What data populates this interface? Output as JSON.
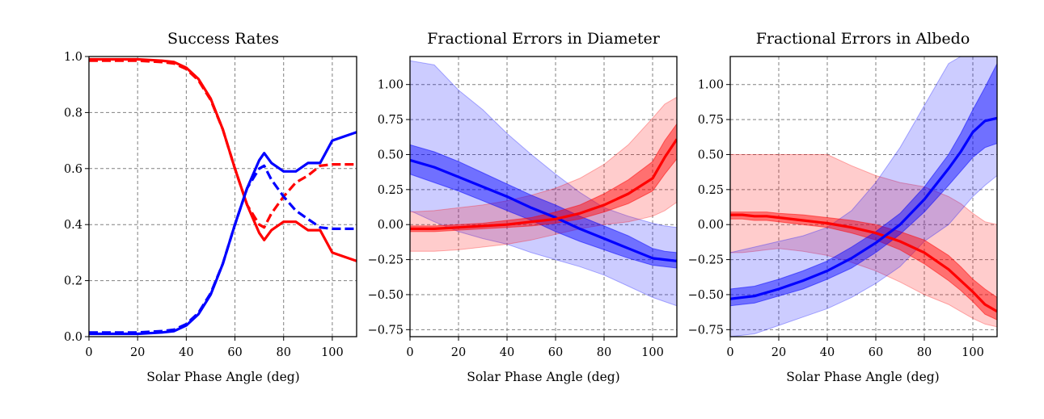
{
  "colors": {
    "red": "#ff0000",
    "blue": "#0000ff",
    "grid": "#808080"
  },
  "chart_data": [
    {
      "type": "line",
      "title": "Success Rates",
      "xlabel": "Solar Phase Angle (deg)",
      "ylabel": "",
      "xlim": [
        0,
        110
      ],
      "ylim": [
        0,
        1.0
      ],
      "xticks": [
        "0",
        "20",
        "40",
        "60",
        "80",
        "100"
      ],
      "yticks": [
        "0.0",
        "0.2",
        "0.4",
        "0.6",
        "0.8",
        "1.0"
      ],
      "grid": true,
      "series": [
        {
          "color": "red",
          "style": "solid",
          "x": [
            0,
            10,
            20,
            30,
            35,
            40,
            45,
            50,
            55,
            60,
            65,
            70,
            72,
            75,
            80,
            85,
            90,
            95,
            100,
            105,
            110
          ],
          "y": [
            0.99,
            0.99,
            0.99,
            0.985,
            0.98,
            0.96,
            0.92,
            0.85,
            0.74,
            0.6,
            0.47,
            0.37,
            0.345,
            0.38,
            0.41,
            0.41,
            0.38,
            0.38,
            0.3,
            0.285,
            0.27
          ]
        },
        {
          "color": "red",
          "style": "dashed",
          "x": [
            0,
            10,
            20,
            30,
            35,
            40,
            45,
            50,
            55,
            60,
            65,
            70,
            72,
            75,
            80,
            85,
            90,
            95,
            100,
            105,
            110
          ],
          "y": [
            0.985,
            0.985,
            0.985,
            0.98,
            0.975,
            0.955,
            0.915,
            0.845,
            0.74,
            0.6,
            0.47,
            0.4,
            0.39,
            0.44,
            0.5,
            0.55,
            0.575,
            0.61,
            0.615,
            0.615,
            0.615
          ]
        },
        {
          "color": "blue",
          "style": "solid",
          "x": [
            0,
            10,
            20,
            30,
            35,
            40,
            45,
            50,
            55,
            60,
            65,
            70,
            72,
            75,
            80,
            85,
            90,
            95,
            100,
            105,
            110
          ],
          "y": [
            0.01,
            0.01,
            0.01,
            0.015,
            0.02,
            0.04,
            0.08,
            0.15,
            0.26,
            0.4,
            0.53,
            0.63,
            0.655,
            0.62,
            0.59,
            0.59,
            0.62,
            0.62,
            0.7,
            0.715,
            0.73
          ]
        },
        {
          "color": "blue",
          "style": "dashed",
          "x": [
            0,
            10,
            20,
            30,
            35,
            40,
            45,
            50,
            55,
            60,
            65,
            70,
            72,
            75,
            80,
            85,
            90,
            95,
            100,
            105,
            110
          ],
          "y": [
            0.015,
            0.015,
            0.015,
            0.02,
            0.025,
            0.045,
            0.085,
            0.155,
            0.26,
            0.4,
            0.53,
            0.6,
            0.61,
            0.56,
            0.5,
            0.45,
            0.42,
            0.39,
            0.385,
            0.385,
            0.385
          ]
        }
      ]
    },
    {
      "type": "area",
      "title": "Fractional Errors in Diameter",
      "xlabel": "Solar Phase Angle (deg)",
      "ylabel": "",
      "xlim": [
        0,
        110
      ],
      "ylim": [
        -0.8,
        1.2
      ],
      "xticks": [
        "0",
        "20",
        "40",
        "60",
        "80",
        "100"
      ],
      "yticks": [
        "1.00",
        "0.75",
        "0.50",
        "0.25",
        "0.00",
        "−0.25",
        "−0.50",
        "−0.75"
      ],
      "grid": true,
      "series": [
        {
          "color": "blue",
          "x": [
            0,
            10,
            20,
            30,
            40,
            50,
            60,
            70,
            80,
            90,
            100,
            105,
            110
          ],
          "median": [
            0.46,
            0.41,
            0.34,
            0.27,
            0.2,
            0.12,
            0.05,
            -0.03,
            -0.1,
            -0.17,
            -0.24,
            -0.25,
            -0.26
          ],
          "inner_lo": [
            0.36,
            0.3,
            0.24,
            0.17,
            0.1,
            0.03,
            -0.05,
            -0.12,
            -0.18,
            -0.24,
            -0.29,
            -0.3,
            -0.31
          ],
          "inner_hi": [
            0.57,
            0.52,
            0.45,
            0.37,
            0.29,
            0.21,
            0.14,
            0.06,
            -0.01,
            -0.08,
            -0.17,
            -0.19,
            -0.2
          ],
          "outer_lo": [
            0.1,
            0.02,
            -0.05,
            -0.1,
            -0.14,
            -0.2,
            -0.25,
            -0.3,
            -0.36,
            -0.44,
            -0.52,
            -0.55,
            -0.58
          ],
          "outer_hi": [
            1.17,
            1.14,
            0.96,
            0.82,
            0.65,
            0.5,
            0.36,
            0.23,
            0.12,
            0.06,
            0.01,
            -0.01,
            -0.02
          ]
        },
        {
          "color": "red",
          "x": [
            0,
            10,
            20,
            30,
            40,
            50,
            60,
            70,
            80,
            90,
            100,
            105,
            110
          ],
          "median": [
            -0.03,
            -0.03,
            -0.02,
            -0.01,
            0.0,
            0.02,
            0.04,
            0.08,
            0.14,
            0.22,
            0.33,
            0.48,
            0.61
          ],
          "inner_lo": [
            -0.05,
            -0.05,
            -0.04,
            -0.03,
            -0.02,
            -0.01,
            0.01,
            0.04,
            0.09,
            0.15,
            0.24,
            0.36,
            0.47
          ],
          "inner_hi": [
            -0.01,
            -0.01,
            0.0,
            0.01,
            0.03,
            0.05,
            0.09,
            0.14,
            0.22,
            0.32,
            0.45,
            0.6,
            0.72
          ],
          "outer_lo": [
            -0.19,
            -0.19,
            -0.18,
            -0.16,
            -0.14,
            -0.11,
            -0.07,
            -0.03,
            0.0,
            0.02,
            0.06,
            0.1,
            0.16
          ],
          "outer_hi": [
            0.09,
            0.1,
            0.12,
            0.14,
            0.17,
            0.21,
            0.26,
            0.33,
            0.43,
            0.57,
            0.76,
            0.86,
            0.91
          ]
        }
      ]
    },
    {
      "type": "area",
      "title": "Fractional Errors in Albedo",
      "xlabel": "Solar Phase Angle (deg)",
      "ylabel": "",
      "xlim": [
        0,
        110
      ],
      "ylim": [
        -0.8,
        1.2
      ],
      "xticks": [
        "0",
        "20",
        "40",
        "60",
        "80",
        "100"
      ],
      "yticks": [
        "1.00",
        "0.75",
        "0.50",
        "0.25",
        "0.00",
        "−0.25",
        "−0.50",
        "−0.75"
      ],
      "grid": true,
      "series": [
        {
          "color": "red",
          "x": [
            0,
            5,
            10,
            15,
            20,
            30,
            40,
            50,
            60,
            70,
            80,
            90,
            95,
            100,
            105,
            110
          ],
          "median": [
            0.07,
            0.07,
            0.06,
            0.06,
            0.05,
            0.03,
            0.01,
            -0.02,
            -0.06,
            -0.12,
            -0.2,
            -0.32,
            -0.4,
            -0.48,
            -0.57,
            -0.62
          ],
          "inner_lo": [
            0.04,
            0.04,
            0.03,
            0.03,
            0.02,
            0.0,
            -0.02,
            -0.06,
            -0.11,
            -0.18,
            -0.28,
            -0.4,
            -0.47,
            -0.55,
            -0.64,
            -0.68
          ],
          "inner_hi": [
            0.09,
            0.09,
            0.09,
            0.09,
            0.08,
            0.07,
            0.05,
            0.03,
            0.0,
            -0.05,
            -0.11,
            -0.22,
            -0.3,
            -0.39,
            -0.46,
            -0.52
          ],
          "outer_lo": [
            -0.2,
            -0.2,
            -0.19,
            -0.18,
            -0.17,
            -0.19,
            -0.22,
            -0.27,
            -0.33,
            -0.41,
            -0.5,
            -0.57,
            -0.62,
            -0.67,
            -0.71,
            -0.73
          ],
          "outer_hi": [
            0.5,
            0.5,
            0.5,
            0.5,
            0.5,
            0.5,
            0.5,
            0.42,
            0.35,
            0.3,
            0.27,
            0.2,
            0.15,
            0.08,
            0.02,
            0.0
          ]
        },
        {
          "color": "blue",
          "x": [
            0,
            10,
            20,
            30,
            40,
            50,
            60,
            70,
            80,
            90,
            95,
            100,
            105,
            110
          ],
          "median": [
            -0.53,
            -0.51,
            -0.46,
            -0.4,
            -0.33,
            -0.24,
            -0.13,
            0.0,
            0.18,
            0.4,
            0.52,
            0.66,
            0.74,
            0.76
          ],
          "inner_lo": [
            -0.58,
            -0.56,
            -0.51,
            -0.46,
            -0.39,
            -0.31,
            -0.2,
            -0.07,
            0.09,
            0.28,
            0.38,
            0.48,
            0.55,
            0.58
          ],
          "inner_hi": [
            -0.46,
            -0.44,
            -0.39,
            -0.33,
            -0.26,
            -0.16,
            -0.05,
            0.08,
            0.27,
            0.5,
            0.65,
            0.82,
            0.98,
            1.15
          ],
          "outer_lo": [
            -0.8,
            -0.78,
            -0.72,
            -0.66,
            -0.6,
            -0.52,
            -0.42,
            -0.3,
            -0.12,
            0.0,
            0.1,
            0.2,
            0.28,
            0.35
          ],
          "outer_hi": [
            -0.2,
            -0.16,
            -0.12,
            -0.08,
            -0.02,
            0.1,
            0.3,
            0.55,
            0.85,
            1.15,
            1.2,
            1.2,
            1.2,
            1.2
          ]
        }
      ]
    }
  ]
}
